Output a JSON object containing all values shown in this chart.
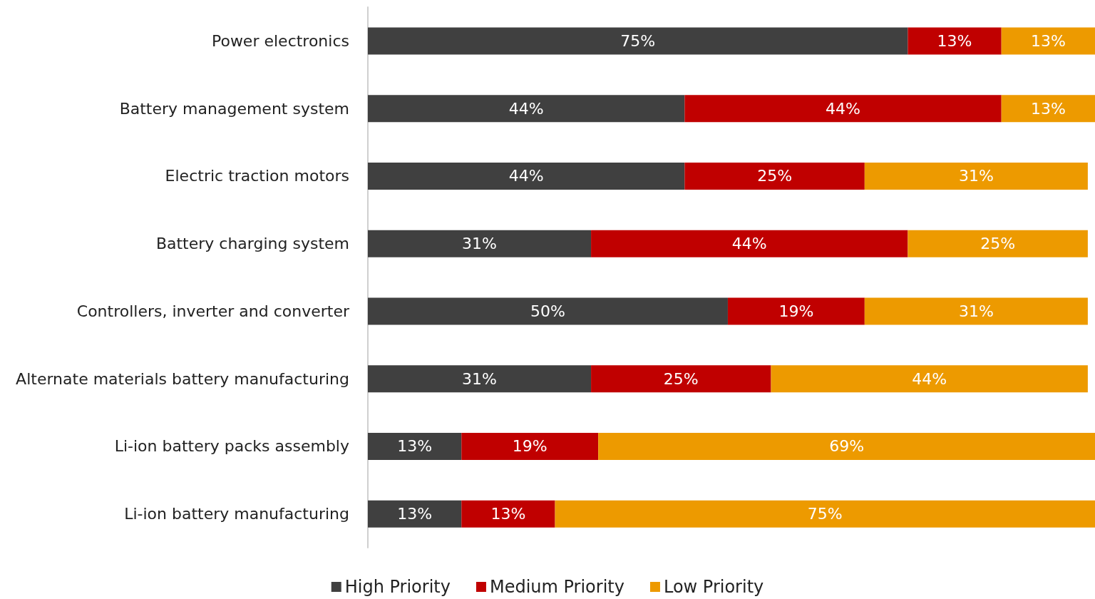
{
  "chart_data": {
    "type": "bar",
    "orientation": "horizontal",
    "stacked": true,
    "legend": "bottom",
    "categories": [
      "Power electronics",
      "Battery management system",
      "Electric traction motors",
      "Battery charging system",
      "Controllers, inverter and converter",
      "Alternate materials battery manufacturing",
      "Li-ion battery packs assembly",
      "Li-ion battery manufacturing"
    ],
    "series": [
      {
        "name": "High Priority",
        "color": "#404040",
        "values": [
          75,
          44,
          44,
          31,
          50,
          31,
          13,
          13
        ],
        "value_labels": [
          "75%",
          "44%",
          "44%",
          "31%",
          "50%",
          "31%",
          "13%",
          "13%"
        ]
      },
      {
        "name": "Medium Priority",
        "color": "#c00000",
        "values": [
          13,
          44,
          25,
          44,
          19,
          25,
          19,
          13
        ],
        "value_labels": [
          "13%",
          "44%",
          "25%",
          "44%",
          "19%",
          "25%",
          "19%",
          "13%"
        ]
      },
      {
        "name": "Low Priority",
        "color": "#ed9a00",
        "values": [
          13,
          13,
          31,
          25,
          31,
          44,
          69,
          75
        ],
        "value_labels": [
          "13%",
          "13%",
          "31%",
          "25%",
          "31%",
          "44%",
          "69%",
          "75%"
        ]
      }
    ]
  }
}
